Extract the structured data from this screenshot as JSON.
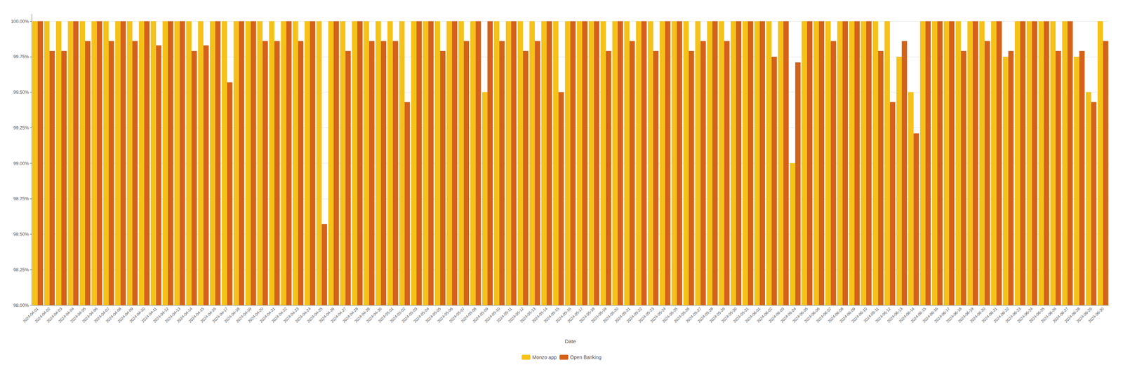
{
  "chart_data": {
    "type": "bar",
    "xlabel": "Date",
    "categories": [
      "2024-04-01",
      "2024-04-02",
      "2024-04-03",
      "2024-04-04",
      "2024-04-05",
      "2024-04-06",
      "2024-04-07",
      "2024-04-08",
      "2024-04-09",
      "2024-04-10",
      "2024-04-11",
      "2024-04-12",
      "2024-04-13",
      "2024-04-14",
      "2024-04-15",
      "2024-04-16",
      "2024-04-17",
      "2024-04-18",
      "2024-04-19",
      "2024-04-20",
      "2024-04-21",
      "2024-04-22",
      "2024-04-23",
      "2024-04-24",
      "2024-04-25",
      "2024-04-26",
      "2024-04-27",
      "2024-04-28",
      "2024-04-29",
      "2024-04-30",
      "2024-05-01",
      "2024-05-02",
      "2024-05-03",
      "2024-05-04",
      "2024-05-05",
      "2024-05-06",
      "2024-05-07",
      "2024-05-08",
      "2024-05-09",
      "2024-05-10",
      "2024-05-11",
      "2024-05-12",
      "2024-05-13",
      "2024-05-14",
      "2024-05-15",
      "2024-05-16",
      "2024-05-17",
      "2024-05-18",
      "2024-05-19",
      "2024-05-20",
      "2024-05-21",
      "2024-05-22",
      "2024-05-23",
      "2024-05-24",
      "2024-05-25",
      "2024-05-26",
      "2024-05-27",
      "2024-05-28",
      "2024-05-29",
      "2024-05-30",
      "2024-05-31",
      "2024-06-01",
      "2024-06-02",
      "2024-06-03",
      "2024-06-04",
      "2024-06-05",
      "2024-06-06",
      "2024-06-07",
      "2024-06-08",
      "2024-06-09",
      "2024-06-10",
      "2024-06-11",
      "2024-06-12",
      "2024-06-13",
      "2024-06-14",
      "2024-06-15",
      "2024-06-16",
      "2024-06-17",
      "2024-06-18",
      "2024-06-19",
      "2024-06-20",
      "2024-06-21",
      "2024-06-22",
      "2024-06-23",
      "2024-06-24",
      "2024-06-25",
      "2024-06-26",
      "2024-06-27",
      "2024-06-28",
      "2024-06-29",
      "2024-06-30"
    ],
    "series": [
      {
        "name": "Monzo app",
        "color": "#F5C218",
        "values": [
          100.0,
          100.0,
          100.0,
          100.0,
          100.0,
          100.0,
          100.0,
          100.0,
          100.0,
          100.0,
          100.0,
          100.0,
          100.0,
          100.0,
          100.0,
          100.0,
          100.0,
          100.0,
          100.0,
          100.0,
          100.0,
          100.0,
          100.0,
          100.0,
          100.0,
          100.0,
          100.0,
          100.0,
          100.0,
          100.0,
          100.0,
          100.0,
          100.0,
          100.0,
          100.0,
          100.0,
          100.0,
          100.0,
          99.5,
          100.0,
          100.0,
          100.0,
          100.0,
          100.0,
          100.0,
          100.0,
          100.0,
          100.0,
          100.0,
          100.0,
          100.0,
          100.0,
          100.0,
          100.0,
          100.0,
          100.0,
          100.0,
          100.0,
          100.0,
          100.0,
          100.0,
          100.0,
          100.0,
          100.0,
          99.0,
          100.0,
          100.0,
          100.0,
          100.0,
          100.0,
          100.0,
          100.0,
          100.0,
          99.75,
          99.5,
          100.0,
          100.0,
          100.0,
          100.0,
          100.0,
          100.0,
          100.0,
          99.75,
          100.0,
          100.0,
          100.0,
          100.0,
          100.0,
          99.75,
          99.5,
          100.0
        ]
      },
      {
        "name": "Open Banking",
        "color": "#D4621A",
        "values": [
          100.0,
          99.79,
          99.79,
          100.0,
          99.86,
          100.0,
          99.86,
          100.0,
          99.86,
          100.0,
          99.83,
          100.0,
          100.0,
          99.79,
          99.83,
          100.0,
          99.57,
          100.0,
          100.0,
          99.86,
          99.86,
          100.0,
          99.86,
          100.0,
          98.57,
          100.0,
          99.79,
          100.0,
          99.86,
          99.86,
          99.86,
          99.43,
          100.0,
          100.0,
          99.79,
          100.0,
          99.86,
          100.0,
          100.0,
          99.86,
          100.0,
          99.79,
          99.86,
          100.0,
          99.5,
          100.0,
          100.0,
          100.0,
          99.79,
          100.0,
          99.86,
          100.0,
          99.79,
          100.0,
          100.0,
          99.79,
          99.86,
          100.0,
          99.86,
          100.0,
          100.0,
          100.0,
          99.75,
          100.0,
          99.71,
          100.0,
          100.0,
          99.86,
          100.0,
          100.0,
          100.0,
          99.79,
          99.43,
          99.86,
          99.21,
          100.0,
          100.0,
          100.0,
          99.79,
          100.0,
          99.86,
          100.0,
          99.79,
          100.0,
          100.0,
          100.0,
          99.79,
          100.0,
          99.79,
          99.43,
          99.86
        ]
      }
    ],
    "ylim": [
      98.0,
      100.05
    ],
    "yticks": [
      {
        "value": 98.0,
        "label": "98.00%"
      },
      {
        "value": 98.25,
        "label": "98.25%"
      },
      {
        "value": 98.5,
        "label": "98.50%"
      },
      {
        "value": 98.75,
        "label": "98.75%"
      },
      {
        "value": 99.0,
        "label": "99.00%"
      },
      {
        "value": 99.25,
        "label": "99.25%"
      },
      {
        "value": 99.5,
        "label": "99.50%"
      },
      {
        "value": 99.75,
        "label": "99.75%"
      },
      {
        "value": 100.0,
        "label": "100.00%"
      }
    ],
    "grid": true,
    "legend": "bottom"
  }
}
